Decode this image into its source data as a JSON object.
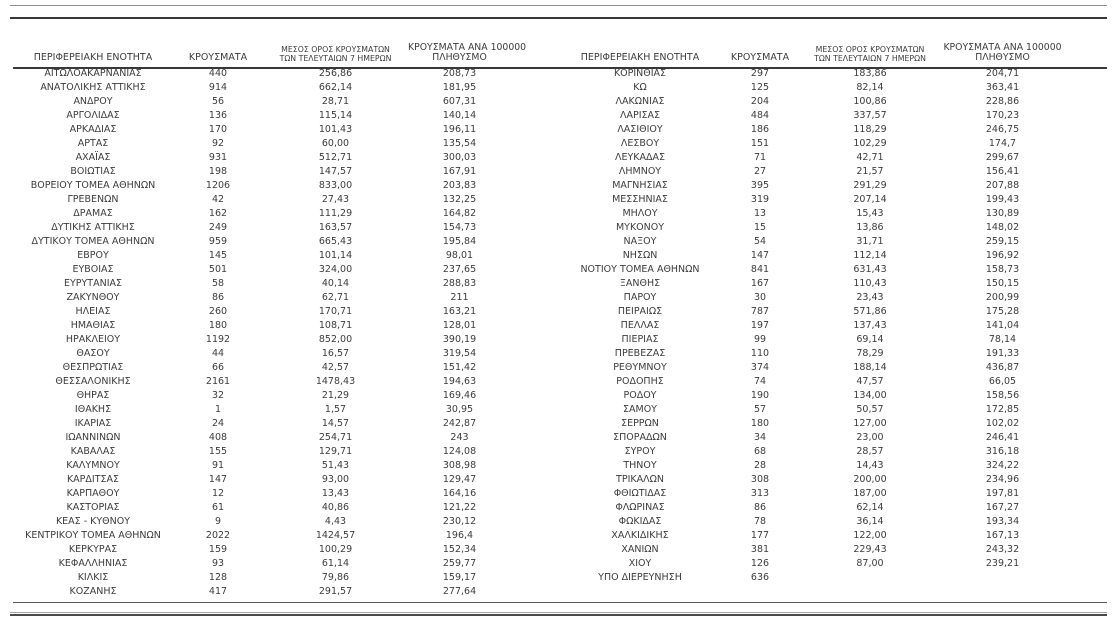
{
  "report": {
    "headers": {
      "region": "ΠΕΡΙΦΕΡΕΙΑΚΗ ΕΝΟΤΗΤΑ",
      "cases": "ΚΡΟΥΣΜΑΤΑ",
      "avg7_line1": "ΜΕΣΟΣ ΟΡΟΣ ΚΡΟΥΣΜΑΤΩΝ",
      "avg7_line2": "ΤΩΝ ΤΕΛΕΥΤΑΙΩΝ 7 ΗΜΕΡΩΝ",
      "per100k_line1": "ΚΡΟΥΣΜΑΤΑ ΑΝΑ 100000",
      "per100k_line2": "ΠΛΗΘΥΣΜΟ"
    },
    "colors": {
      "text": "#3c3c3c",
      "rule_dark": "#383838",
      "rule_gray": "#8f8f8f"
    },
    "left_rows": [
      [
        "ΑΙΤΩΛΟΑΚΑΡΝΑΝΙΑΣ",
        "440",
        "256,86",
        "208,73"
      ],
      [
        "ΑΝΑΤΟΛΙΚΗΣ ΑΤΤΙΚΗΣ",
        "914",
        "662,14",
        "181,95"
      ],
      [
        "ΑΝΔΡΟΥ",
        "56",
        "28,71",
        "607,31"
      ],
      [
        "ΑΡΓΟΛΙΔΑΣ",
        "136",
        "115,14",
        "140,14"
      ],
      [
        "ΑΡΚΑΔΙΑΣ",
        "170",
        "101,43",
        "196,11"
      ],
      [
        "ΑΡΤΑΣ",
        "92",
        "60,00",
        "135,54"
      ],
      [
        "ΑΧΑΪΑΣ",
        "931",
        "512,71",
        "300,03"
      ],
      [
        "ΒΟΙΩΤΙΑΣ",
        "198",
        "147,57",
        "167,91"
      ],
      [
        "ΒΟΡΕΙΟΥ ΤΟΜΕΑ ΑΘΗΝΩΝ",
        "1206",
        "833,00",
        "203,83"
      ],
      [
        "ΓΡΕΒΕΝΩΝ",
        "42",
        "27,43",
        "132,25"
      ],
      [
        "ΔΡΑΜΑΣ",
        "162",
        "111,29",
        "164,82"
      ],
      [
        "ΔΥΤΙΚΗΣ ΑΤΤΙΚΗΣ",
        "249",
        "163,57",
        "154,73"
      ],
      [
        "ΔΥΤΙΚΟΥ ΤΟΜΕΑ ΑΘΗΝΩΝ",
        "959",
        "665,43",
        "195,84"
      ],
      [
        "ΕΒΡΟΥ",
        "145",
        "101,14",
        "98,01"
      ],
      [
        "ΕΥΒΟΙΑΣ",
        "501",
        "324,00",
        "237,65"
      ],
      [
        "ΕΥΡΥΤΑΝΙΑΣ",
        "58",
        "40,14",
        "288,83"
      ],
      [
        "ΖΑΚΥΝΘΟΥ",
        "86",
        "62,71",
        "211"
      ],
      [
        "ΗΛΕΙΑΣ",
        "260",
        "170,71",
        "163,21"
      ],
      [
        "ΗΜΑΘΙΑΣ",
        "180",
        "108,71",
        "128,01"
      ],
      [
        "ΗΡΑΚΛΕΙΟΥ",
        "1192",
        "852,00",
        "390,19"
      ],
      [
        "ΘΑΣΟΥ",
        "44",
        "16,57",
        "319,54"
      ],
      [
        "ΘΕΣΠΡΩΤΙΑΣ",
        "66",
        "42,57",
        "151,42"
      ],
      [
        "ΘΕΣΣΑΛΟΝΙΚΗΣ",
        "2161",
        "1478,43",
        "194,63"
      ],
      [
        "ΘΗΡΑΣ",
        "32",
        "21,29",
        "169,46"
      ],
      [
        "ΙΘΑΚΗΣ",
        "1",
        "1,57",
        "30,95"
      ],
      [
        "ΙΚΑΡΙΑΣ",
        "24",
        "14,57",
        "242,87"
      ],
      [
        "ΙΩΑΝΝΙΝΩΝ",
        "408",
        "254,71",
        "243"
      ],
      [
        "ΚΑΒΑΛΑΣ",
        "155",
        "129,71",
        "124,08"
      ],
      [
        "ΚΑΛΥΜΝΟΥ",
        "91",
        "51,43",
        "308,98"
      ],
      [
        "ΚΑΡΔΙΤΣΑΣ",
        "147",
        "93,00",
        "129,47"
      ],
      [
        "ΚΑΡΠΑΘΟΥ",
        "12",
        "13,43",
        "164,16"
      ],
      [
        "ΚΑΣΤΟΡΙΑΣ",
        "61",
        "40,86",
        "121,22"
      ],
      [
        "ΚΕΑΣ - ΚΥΘΝΟΥ",
        "9",
        "4,43",
        "230,12"
      ],
      [
        "ΚΕΝΤΡΙΚΟΥ ΤΟΜΕΑ ΑΘΗΝΩΝ",
        "2022",
        "1424,57",
        "196,4"
      ],
      [
        "ΚΕΡΚΥΡΑΣ",
        "159",
        "100,29",
        "152,34"
      ],
      [
        "ΚΕΦΑΛΛΗΝΙΑΣ",
        "93",
        "61,14",
        "259,77"
      ],
      [
        "ΚΙΛΚΙΣ",
        "128",
        "79,86",
        "159,17"
      ],
      [
        "ΚΟΖΑΝΗΣ",
        "417",
        "291,57",
        "277,64"
      ]
    ],
    "right_rows": [
      [
        "ΚΟΡΙΝΘΙΑΣ",
        "297",
        "183,86",
        "204,71"
      ],
      [
        "ΚΩ",
        "125",
        "82,14",
        "363,41"
      ],
      [
        "ΛΑΚΩΝΙΑΣ",
        "204",
        "100,86",
        "228,86"
      ],
      [
        "ΛΑΡΙΣΑΣ",
        "484",
        "337,57",
        "170,23"
      ],
      [
        "ΛΑΣΙΘΙΟΥ",
        "186",
        "118,29",
        "246,75"
      ],
      [
        "ΛΕΣΒΟΥ",
        "151",
        "102,29",
        "174,7"
      ],
      [
        "ΛΕΥΚΑΔΑΣ",
        "71",
        "42,71",
        "299,67"
      ],
      [
        "ΛΗΜΝΟΥ",
        "27",
        "21,57",
        "156,41"
      ],
      [
        "ΜΑΓΝΗΣΙΑΣ",
        "395",
        "291,29",
        "207,88"
      ],
      [
        "ΜΕΣΣΗΝΙΑΣ",
        "319",
        "207,14",
        "199,43"
      ],
      [
        "ΜΗΛΟΥ",
        "13",
        "15,43",
        "130,89"
      ],
      [
        "ΜΥΚΟΝΟΥ",
        "15",
        "13,86",
        "148,02"
      ],
      [
        "ΝΑΞΟΥ",
        "54",
        "31,71",
        "259,15"
      ],
      [
        "ΝΗΣΩΝ",
        "147",
        "112,14",
        "196,92"
      ],
      [
        "ΝΟΤΙΟΥ ΤΟΜΕΑ ΑΘΗΝΩΝ",
        "841",
        "631,43",
        "158,73"
      ],
      [
        "ΞΑΝΘΗΣ",
        "167",
        "110,43",
        "150,15"
      ],
      [
        "ΠΑΡΟΥ",
        "30",
        "23,43",
        "200,99"
      ],
      [
        "ΠΕΙΡΑΙΩΣ",
        "787",
        "571,86",
        "175,28"
      ],
      [
        "ΠΕΛΛΑΣ",
        "197",
        "137,43",
        "141,04"
      ],
      [
        "ΠΙΕΡΙΑΣ",
        "99",
        "69,14",
        "78,14"
      ],
      [
        "ΠΡΕΒΕΖΑΣ",
        "110",
        "78,29",
        "191,33"
      ],
      [
        "ΡΕΘΥΜΝΟΥ",
        "374",
        "188,14",
        "436,87"
      ],
      [
        "ΡΟΔΟΠΗΣ",
        "74",
        "47,57",
        "66,05"
      ],
      [
        "ΡΟΔΟΥ",
        "190",
        "134,00",
        "158,56"
      ],
      [
        "ΣΑΜΟΥ",
        "57",
        "50,57",
        "172,85"
      ],
      [
        "ΣΕΡΡΩΝ",
        "180",
        "127,00",
        "102,02"
      ],
      [
        "ΣΠΟΡΑΔΩΝ",
        "34",
        "23,00",
        "246,41"
      ],
      [
        "ΣΥΡΟΥ",
        "68",
        "28,57",
        "316,18"
      ],
      [
        "ΤΗΝΟΥ",
        "28",
        "14,43",
        "324,22"
      ],
      [
        "ΤΡΙΚΑΛΩΝ",
        "308",
        "200,00",
        "234,96"
      ],
      [
        "ΦΘΙΩΤΙΔΑΣ",
        "313",
        "187,00",
        "197,81"
      ],
      [
        "ΦΛΩΡΙΝΑΣ",
        "86",
        "62,14",
        "167,27"
      ],
      [
        "ΦΩΚΙΔΑΣ",
        "78",
        "36,14",
        "193,34"
      ],
      [
        "ΧΑΛΚΙΔΙΚΗΣ",
        "177",
        "122,00",
        "167,13"
      ],
      [
        "ΧΑΝΙΩΝ",
        "381",
        "229,43",
        "243,32"
      ],
      [
        "ΧΙΟΥ",
        "126",
        "87,00",
        "239,21"
      ],
      [
        "ΥΠΟ ΔΙΕΡΕΥΝΗΣΗ",
        "636",
        "",
        ""
      ]
    ]
  }
}
